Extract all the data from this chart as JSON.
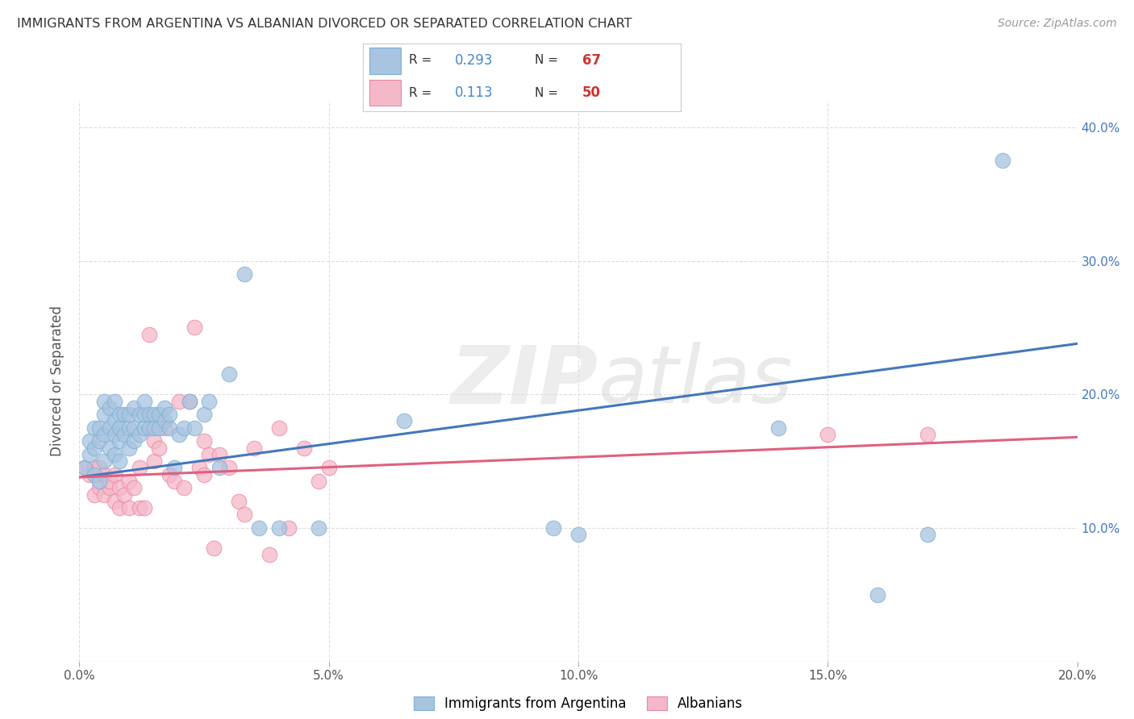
{
  "title": "IMMIGRANTS FROM ARGENTINA VS ALBANIAN DIVORCED OR SEPARATED CORRELATION CHART",
  "source": "Source: ZipAtlas.com",
  "ylabel": "Divorced or Separated",
  "xlim": [
    0.0,
    0.2
  ],
  "ylim": [
    0.0,
    0.42
  ],
  "xticks": [
    0.0,
    0.05,
    0.1,
    0.15,
    0.2
  ],
  "xtick_labels": [
    "0.0%",
    "5.0%",
    "10.0%",
    "15.0%",
    "20.0%"
  ],
  "yticks": [
    0.1,
    0.2,
    0.3,
    0.4
  ],
  "ytick_labels": [
    "10.0%",
    "20.0%",
    "30.0%",
    "40.0%"
  ],
  "blue_color": "#A8C4E0",
  "blue_edge_color": "#7BAFD4",
  "pink_color": "#F5B8C8",
  "pink_edge_color": "#E888A8",
  "blue_line_color": "#4477BB",
  "pink_line_color": "#E06080",
  "legend_R1": "0.293",
  "legend_N1": "67",
  "legend_R2": "0.113",
  "legend_N2": "50",
  "legend_label1": "Immigrants from Argentina",
  "legend_label2": "Albanians",
  "watermark_zip": "ZIP",
  "watermark_atlas": "atlas",
  "blue_scatter_x": [
    0.001,
    0.002,
    0.002,
    0.003,
    0.003,
    0.003,
    0.004,
    0.004,
    0.004,
    0.005,
    0.005,
    0.005,
    0.005,
    0.006,
    0.006,
    0.006,
    0.007,
    0.007,
    0.007,
    0.007,
    0.008,
    0.008,
    0.008,
    0.008,
    0.009,
    0.009,
    0.01,
    0.01,
    0.01,
    0.011,
    0.011,
    0.011,
    0.012,
    0.012,
    0.013,
    0.013,
    0.013,
    0.014,
    0.014,
    0.015,
    0.015,
    0.016,
    0.016,
    0.017,
    0.017,
    0.018,
    0.018,
    0.019,
    0.02,
    0.021,
    0.022,
    0.023,
    0.025,
    0.026,
    0.028,
    0.03,
    0.033,
    0.036,
    0.04,
    0.048,
    0.065,
    0.095,
    0.1,
    0.14,
    0.16,
    0.17,
    0.185
  ],
  "blue_scatter_y": [
    0.145,
    0.155,
    0.165,
    0.14,
    0.16,
    0.175,
    0.135,
    0.165,
    0.175,
    0.15,
    0.17,
    0.185,
    0.195,
    0.16,
    0.175,
    0.19,
    0.155,
    0.17,
    0.18,
    0.195,
    0.15,
    0.165,
    0.175,
    0.185,
    0.17,
    0.185,
    0.16,
    0.175,
    0.185,
    0.165,
    0.175,
    0.19,
    0.17,
    0.185,
    0.175,
    0.185,
    0.195,
    0.175,
    0.185,
    0.175,
    0.185,
    0.175,
    0.185,
    0.18,
    0.19,
    0.175,
    0.185,
    0.145,
    0.17,
    0.175,
    0.195,
    0.175,
    0.185,
    0.195,
    0.145,
    0.215,
    0.29,
    0.1,
    0.1,
    0.1,
    0.18,
    0.1,
    0.095,
    0.175,
    0.05,
    0.095,
    0.375
  ],
  "pink_scatter_x": [
    0.001,
    0.002,
    0.003,
    0.003,
    0.004,
    0.004,
    0.005,
    0.005,
    0.006,
    0.006,
    0.007,
    0.007,
    0.008,
    0.008,
    0.009,
    0.01,
    0.01,
    0.011,
    0.012,
    0.012,
    0.013,
    0.014,
    0.015,
    0.015,
    0.016,
    0.017,
    0.018,
    0.019,
    0.02,
    0.021,
    0.022,
    0.023,
    0.024,
    0.025,
    0.025,
    0.026,
    0.027,
    0.028,
    0.03,
    0.032,
    0.033,
    0.035,
    0.038,
    0.04,
    0.042,
    0.045,
    0.048,
    0.05,
    0.15,
    0.17
  ],
  "pink_scatter_y": [
    0.145,
    0.14,
    0.145,
    0.125,
    0.13,
    0.145,
    0.14,
    0.125,
    0.13,
    0.135,
    0.12,
    0.14,
    0.13,
    0.115,
    0.125,
    0.115,
    0.135,
    0.13,
    0.115,
    0.145,
    0.115,
    0.245,
    0.15,
    0.165,
    0.16,
    0.175,
    0.14,
    0.135,
    0.195,
    0.13,
    0.195,
    0.25,
    0.145,
    0.14,
    0.165,
    0.155,
    0.085,
    0.155,
    0.145,
    0.12,
    0.11,
    0.16,
    0.08,
    0.175,
    0.1,
    0.16,
    0.135,
    0.145,
    0.17,
    0.17
  ],
  "blue_line_x": [
    0.0,
    0.2
  ],
  "blue_line_y": [
    0.138,
    0.238
  ],
  "pink_line_x": [
    0.0,
    0.2
  ],
  "pink_line_y": [
    0.138,
    0.168
  ],
  "background_color": "#FFFFFF",
  "grid_color": "#DDDDDD"
}
